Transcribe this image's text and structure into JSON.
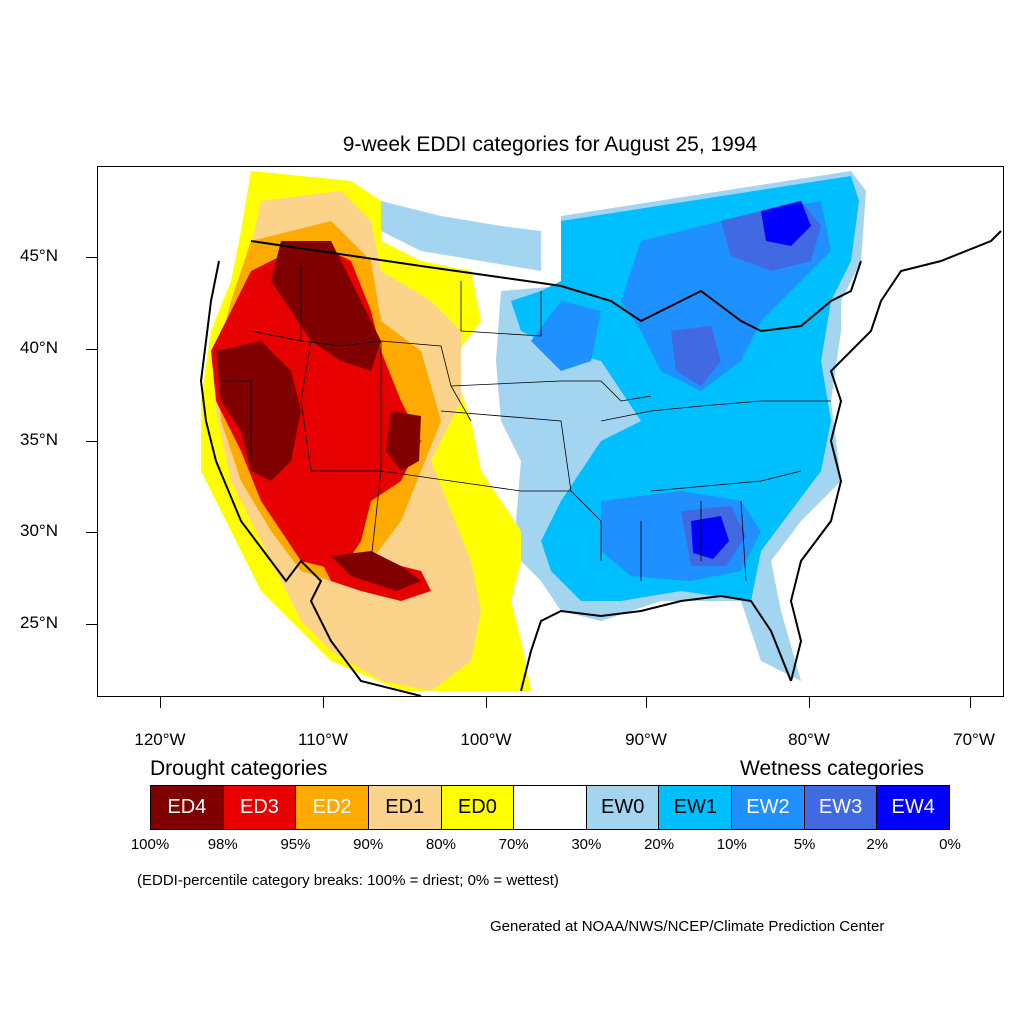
{
  "title": "9-week EDDI categories for August 25, 1994",
  "y_axis_labels": [
    "45°N",
    "40°N",
    "35°N",
    "30°N",
    "25°N"
  ],
  "x_axis_labels": [
    "120°W",
    "110°W",
    "100°W",
    "90°W",
    "80°W",
    "70°W"
  ],
  "legend": {
    "drought_heading": "Drought categories",
    "wetness_heading": "Wetness categories",
    "categories": [
      {
        "label": "ED4",
        "color": "#800000",
        "text_color": "#ffffff"
      },
      {
        "label": "ED3",
        "color": "#e60000",
        "text_color": "#ffffff"
      },
      {
        "label": "ED2",
        "color": "#ffaa00",
        "text_color": "#ffffff"
      },
      {
        "label": "ED1",
        "color": "#fcd38b",
        "text_color": "#000000"
      },
      {
        "label": "ED0",
        "color": "#ffff00",
        "text_color": "#000000"
      },
      {
        "label": "",
        "color": "#ffffff",
        "text_color": "#000000"
      },
      {
        "label": "EW0",
        "color": "#a3d4f0",
        "text_color": "#000000"
      },
      {
        "label": "EW1",
        "color": "#00bfff",
        "text_color": "#000000"
      },
      {
        "label": "EW2",
        "color": "#1e90ff",
        "text_color": "#ffffff"
      },
      {
        "label": "EW3",
        "color": "#4169e1",
        "text_color": "#ffffff"
      },
      {
        "label": "EW4",
        "color": "#0000ff",
        "text_color": "#ffffff"
      }
    ],
    "breaks": [
      "100%",
      "98%",
      "95%",
      "90%",
      "80%",
      "70%",
      "30%",
      "20%",
      "10%",
      "5%",
      "2%",
      "0%"
    ]
  },
  "note": "(EDDI-percentile category breaks: 100% = driest; 0% = wettest)",
  "credit": "Generated at NOAA/NWS/NCEP/Climate Prediction Center"
}
